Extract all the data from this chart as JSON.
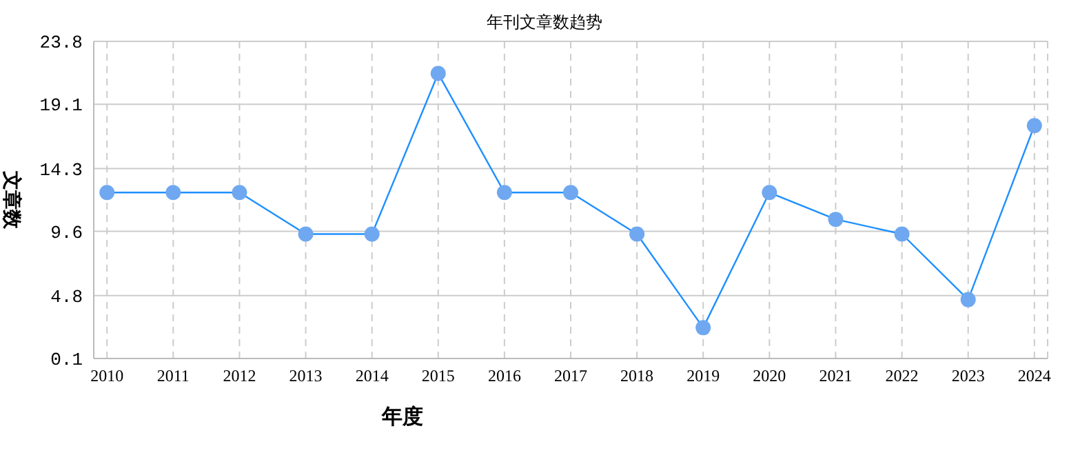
{
  "chart_data": {
    "type": "line",
    "title": "年刊文章数趋势",
    "xlabel": "年度",
    "ylabel": "文章数",
    "categories": [
      "2010",
      "2011",
      "2012",
      "2013",
      "2014",
      "2015",
      "2016",
      "2017",
      "2018",
      "2019",
      "2020",
      "2021",
      "2022",
      "2023",
      "2024"
    ],
    "series": [
      {
        "color": "#1e90ff",
        "values": [
          12.5,
          12.5,
          12.5,
          9.4,
          9.4,
          21.4,
          12.5,
          12.5,
          9.4,
          2.4,
          12.5,
          10.5,
          9.4,
          4.5,
          17.5
        ]
      }
    ],
    "ylim": [
      0.1,
      23.8
    ],
    "yticks": [
      0.1,
      4.8,
      9.6,
      14.3,
      19.1,
      23.8
    ],
    "grid": true,
    "legend": false,
    "marker": "circle",
    "line_style": "solid"
  }
}
